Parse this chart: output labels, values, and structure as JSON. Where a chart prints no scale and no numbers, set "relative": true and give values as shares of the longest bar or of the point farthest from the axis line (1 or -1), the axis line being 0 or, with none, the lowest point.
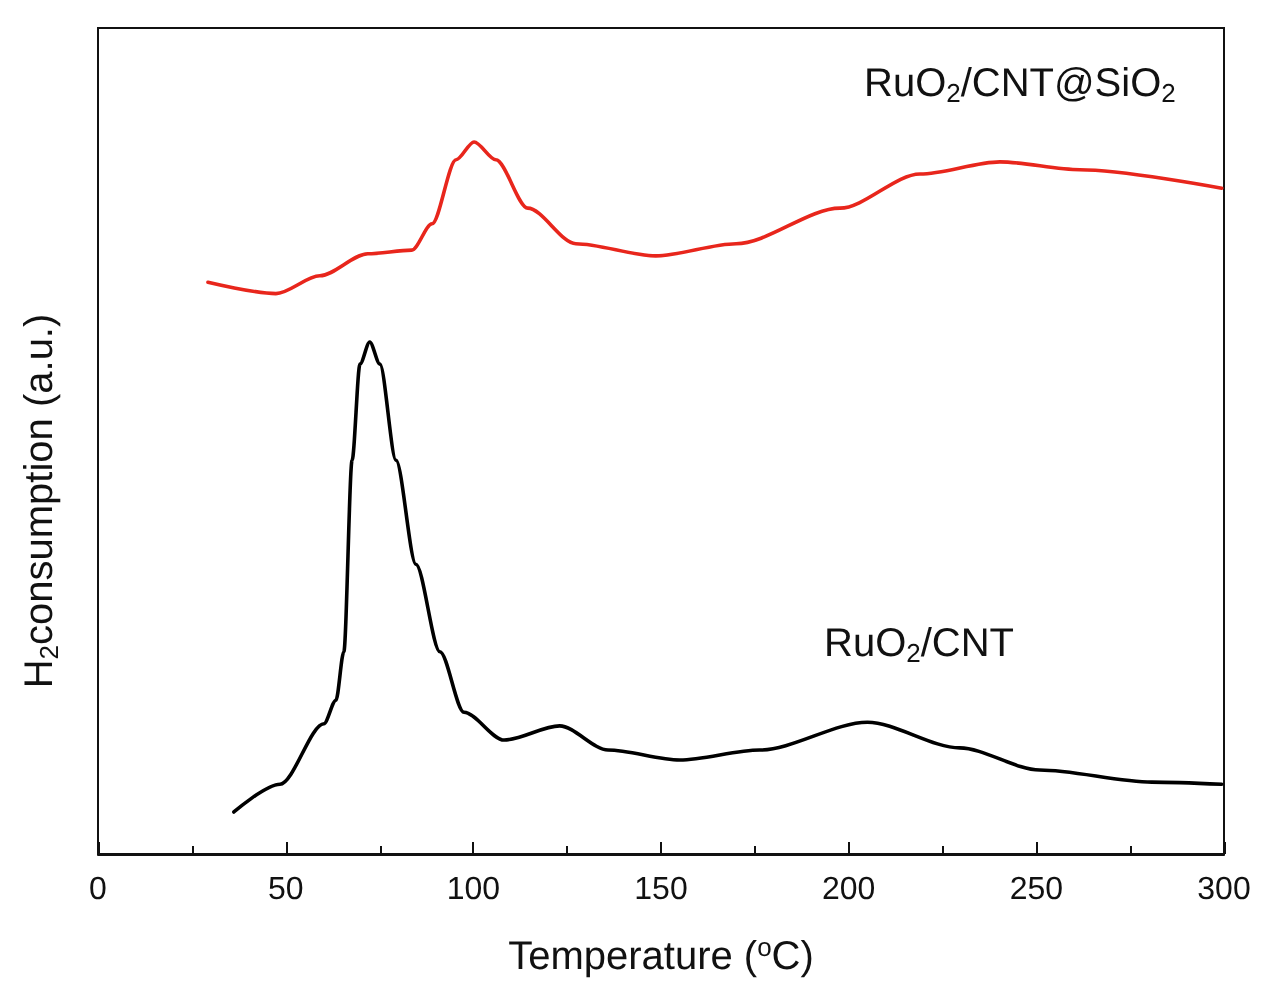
{
  "chart_data": {
    "type": "line",
    "relative": true,
    "xlabel": "Temperature ($^{o}$C)",
    "ylabel": "H$_{2}$consumption (a.u.)",
    "xlim": [
      0,
      300
    ],
    "xticks": [
      0,
      50,
      100,
      150,
      200,
      250,
      300
    ],
    "grid": false,
    "legend": false,
    "marker": "none",
    "line_style": "solid",
    "series": [
      {
        "name": "RuO$_{2}$/CNT@SiO$_{2}$",
        "color": "#e8261c",
        "x": [
          29.3,
          47.4,
          59.1,
          71.9,
          83.6,
          89,
          95.4,
          100.2,
          106,
          114.5,
          127.3,
          148.6,
          170,
          197.7,
          219,
          240.3,
          261.6,
          299.4
        ],
        "values": [
          0.803,
          0.787,
          0.812,
          0.843,
          0.848,
          0.885,
          0.975,
          1,
          0.975,
          0.907,
          0.857,
          0.84,
          0.857,
          0.907,
          0.955,
          0.972,
          0.961,
          0.935
        ]
      },
      {
        "name": "RuO$_{2}$/CNT",
        "color": "#000000",
        "x": [
          36.2,
          48.5,
          60.2,
          63.4,
          65.5,
          67.7,
          69.8,
          72.4,
          75.1,
          79.4,
          84.7,
          91.1,
          97.5,
          108.2,
          123,
          135.9,
          155,
          176.3,
          205,
          229.6,
          250.9,
          280.8,
          299.4
        ],
        "values": [
          0.059,
          0.098,
          0.183,
          0.216,
          0.284,
          0.553,
          0.688,
          0.719,
          0.688,
          0.553,
          0.407,
          0.284,
          0.199,
          0.16,
          0.18,
          0.146,
          0.132,
          0.146,
          0.185,
          0.149,
          0.118,
          0.101,
          0.098
        ]
      }
    ]
  }
}
